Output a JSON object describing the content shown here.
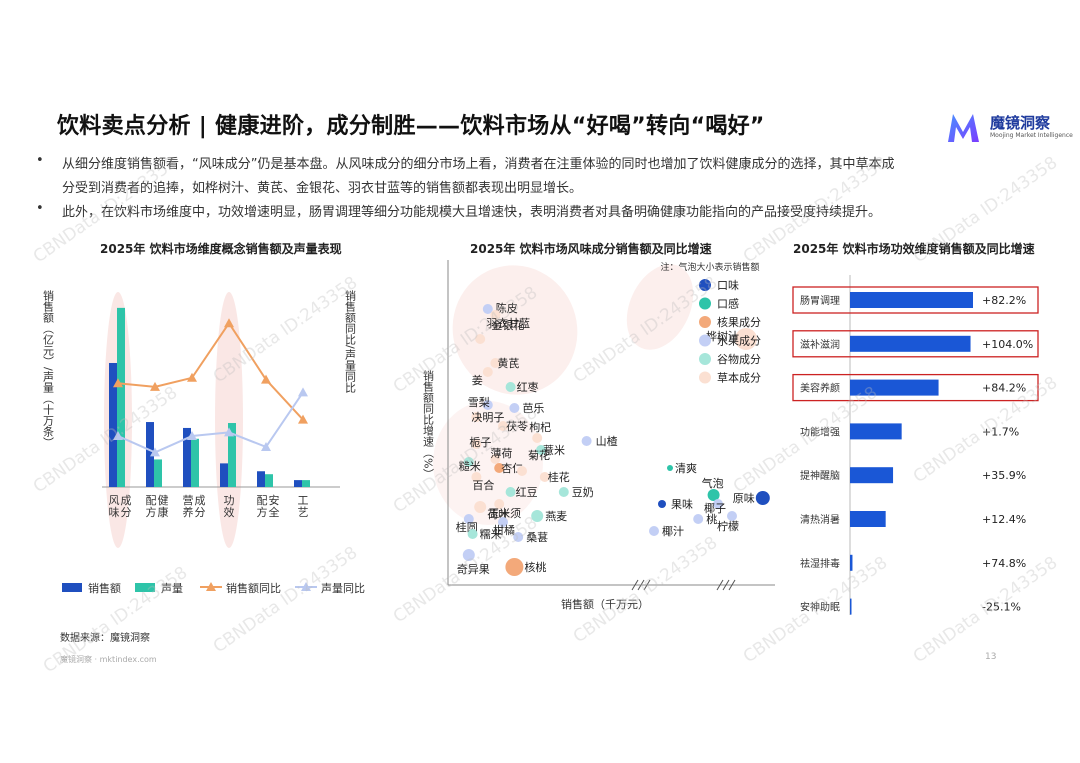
{
  "title": "饮料卖点分析 | 健康进阶，成分制胜——饮料市场从“好喝”转向“喝好”",
  "logo": {
    "name": "魔镜洞察",
    "subtitle": "Moojing Market Intelligence"
  },
  "bullets": {
    "b1_line1": "从细分维度销售额看，“风味成分”仍是基本盘。从风味成分的细分市场上看，消费者在注重体验的同时也增加了饮料健康成分的选择，其中草本成",
    "b1_line2": "分受到消费者的追捧，如桦树汁、黄芪、金银花、羽衣甘蓝等的销售额都表现出明显增长。",
    "b2_line1": "此外，在饮料市场维度中，功效增速明显，肠胃调理等细分功能规模大且增速快，表明消费者对具备明确健康功能指向的产品接受度持续提升。"
  },
  "watermark": "CBNData ID:243358",
  "footer": {
    "source": "数据来源：魔镜洞察",
    "site": "魔镜洞察 · mktindex.com",
    "page": "13"
  },
  "colors": {
    "sales": "#1f4fbf",
    "volume": "#2ec4a9",
    "sales_yoy": "#f0a060",
    "volume_yoy": "#b9c8f0",
    "highlight": "#f7d7d3",
    "bar3": "#1a57d6",
    "box": "#cc2222"
  },
  "chart_data": [
    {
      "type": "bar",
      "title": "2025年 饮料市场维度概念销售额及声量表现",
      "ylabel_left": "销售额（亿元）/声量（十万条）",
      "ylabel_right": "销售额同比/声量同比",
      "categories": [
        "风味成分",
        "配方健康",
        "营养成分",
        "功效",
        "配方安全",
        "工艺"
      ],
      "series": [
        {
          "name": "销售额",
          "kind": "bar",
          "values": [
            126,
            66,
            60,
            24,
            16,
            7
          ]
        },
        {
          "name": "声量",
          "kind": "bar",
          "values": [
            182,
            28,
            49,
            65,
            13,
            7
          ]
        },
        {
          "name": "销售额同比",
          "kind": "line",
          "values": [
            0.57,
            0.55,
            0.6,
            0.9,
            0.59,
            0.37
          ]
        },
        {
          "name": "声量同比",
          "kind": "line",
          "values": [
            0.28,
            0.19,
            0.28,
            0.3,
            0.22,
            0.52
          ]
        }
      ],
      "highlight": [
        "风味成分",
        "功效"
      ]
    },
    {
      "type": "scatter",
      "title": "2025年 饮料市场风味成分销售额及同比增速",
      "note": "注：气泡大小表示销售额",
      "xlabel": "销售额（千万元）",
      "ylabel": "销售额同比增速（%）",
      "legend": [
        "口味",
        "口感",
        "核果成分",
        "水果成分",
        "谷物成分",
        "草本成分"
      ],
      "legend_colors": [
        "#1f4fbf",
        "#2ec4a9",
        "#f3a97a",
        "#c3cff5",
        "#a6e6da",
        "#fbe0d2"
      ],
      "points": [
        {
          "label": "陈皮",
          "group": "水果成分",
          "x": 0.6,
          "y": 98,
          "r": 5
        },
        {
          "label": "金银花",
          "group": "草本成分",
          "x": 0.8,
          "y": 96,
          "r": 5
        },
        {
          "label": "羽衣甘蓝",
          "group": "草本成分",
          "x": 0.4,
          "y": 88,
          "r": 5
        },
        {
          "label": "桦树汁",
          "group": "草本成分",
          "x": 9.0,
          "y": 88,
          "r": 11
        },
        {
          "label": "黄芪",
          "group": "草本成分",
          "x": 0.8,
          "y": 80,
          "r": 5
        },
        {
          "label": "姜",
          "group": "草本成分",
          "x": 0.6,
          "y": 77,
          "r": 5
        },
        {
          "label": "红枣",
          "group": "谷物成分",
          "x": 1.2,
          "y": 72,
          "r": 5
        },
        {
          "label": "雪梨",
          "group": "水果成分",
          "x": 0.6,
          "y": 66,
          "r": 5
        },
        {
          "label": "芭乐",
          "group": "水果成分",
          "x": 1.3,
          "y": 65,
          "r": 5
        },
        {
          "label": "决明子",
          "group": "草本成分",
          "x": 0.3,
          "y": 62,
          "r": 5
        },
        {
          "label": "茯苓",
          "group": "草本成分",
          "x": 1.0,
          "y": 59,
          "r": 5
        },
        {
          "label": "枸杞",
          "group": "草本成分",
          "x": 1.9,
          "y": 55,
          "r": 5
        },
        {
          "label": "山楂",
          "group": "水果成分",
          "x": 3.2,
          "y": 54,
          "r": 5
        },
        {
          "label": "栀子",
          "group": "草本成分",
          "x": 0.3,
          "y": 53,
          "r": 5
        },
        {
          "label": "薏米",
          "group": "谷物成分",
          "x": 2.0,
          "y": 51,
          "r": 5
        },
        {
          "label": "糙米",
          "group": "谷物成分",
          "x": 0.1,
          "y": 47,
          "r": 5
        },
        {
          "label": "薄荷",
          "group": "草本成分",
          "x": 0.8,
          "y": 48,
          "r": 5
        },
        {
          "label": "杏仁",
          "group": "核果成分",
          "x": 0.9,
          "y": 45,
          "r": 5
        },
        {
          "label": "菊花",
          "group": "草本成分",
          "x": 1.5,
          "y": 44,
          "r": 5
        },
        {
          "label": "百合",
          "group": "草本成分",
          "x": 0.3,
          "y": 42,
          "r": 5
        },
        {
          "label": "桂花",
          "group": "草本成分",
          "x": 2.1,
          "y": 42,
          "r": 5
        },
        {
          "label": "清爽",
          "group": "口感",
          "x": 5.8,
          "y": 45,
          "r": 3
        },
        {
          "label": "气泡",
          "group": "口感",
          "x": 7.8,
          "y": 36,
          "r": 6
        },
        {
          "label": "红豆",
          "group": "谷物成分",
          "x": 1.2,
          "y": 37,
          "r": 5
        },
        {
          "label": "豆奶",
          "group": "谷物成分",
          "x": 2.6,
          "y": 37,
          "r": 5
        },
        {
          "label": "荷叶",
          "group": "草本成分",
          "x": 0.9,
          "y": 33,
          "r": 5
        },
        {
          "label": "原味",
          "group": "口味",
          "x": 9.6,
          "y": 35,
          "r": 7
        },
        {
          "label": "果味",
          "group": "口味",
          "x": 5.4,
          "y": 33,
          "r": 4
        },
        {
          "label": "椰子",
          "group": "水果成分",
          "x": 8.0,
          "y": 33,
          "r": 5
        },
        {
          "label": "玉米须",
          "group": "草本成分",
          "x": 0.4,
          "y": 32,
          "r": 6
        },
        {
          "label": "燕麦",
          "group": "谷物成分",
          "x": 1.9,
          "y": 29,
          "r": 6
        },
        {
          "label": "柑橘",
          "group": "水果成分",
          "x": 1.0,
          "y": 27,
          "r": 5
        },
        {
          "label": "柠檬",
          "group": "水果成分",
          "x": 8.5,
          "y": 29,
          "r": 5
        },
        {
          "label": "桃",
          "group": "水果成分",
          "x": 7.1,
          "y": 28,
          "r": 5
        },
        {
          "label": "桂圆",
          "group": "水果成分",
          "x": 0.1,
          "y": 28,
          "r": 5
        },
        {
          "label": "糯米",
          "group": "谷物成分",
          "x": 0.2,
          "y": 23,
          "r": 5
        },
        {
          "label": "椰汁",
          "group": "水果成分",
          "x": 5.0,
          "y": 24,
          "r": 5
        },
        {
          "label": "桑葚",
          "group": "水果成分",
          "x": 1.4,
          "y": 22,
          "r": 5
        },
        {
          "label": "奇异果",
          "group": "水果成分",
          "x": 0.1,
          "y": 16,
          "r": 6
        },
        {
          "label": "核桃",
          "group": "核果成分",
          "x": 1.3,
          "y": 12,
          "r": 9
        }
      ]
    },
    {
      "type": "bar",
      "title": "2025年 饮料市场功效维度销售额及同比增速",
      "orientation": "horizontal",
      "categories": [
        "肠胃调理",
        "滋补滋润",
        "美容养颜",
        "功能增强",
        "提神醒脑",
        "清热消暑",
        "祛湿排毒",
        "安神助眠"
      ],
      "values": [
        100,
        98,
        72,
        42,
        35,
        29,
        2,
        0.5
      ],
      "growth_labels": [
        "+82.2%",
        "+104.0%",
        "+84.2%",
        "+1.7%",
        "+35.9%",
        "+12.4%",
        "+74.8%",
        "-25.1%"
      ],
      "boxed": [
        "肠胃调理",
        "滋补滋润",
        "美容养颜"
      ]
    }
  ]
}
